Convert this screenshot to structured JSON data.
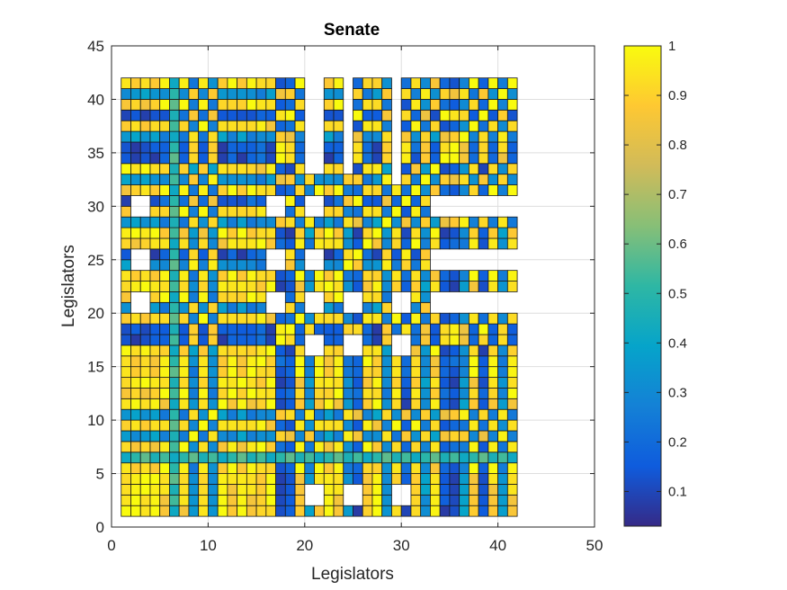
{
  "chart_data": {
    "type": "heatmap",
    "title": "Senate",
    "xlabel": "Legislators",
    "ylabel": "Legislators",
    "xlim": [
      0,
      50
    ],
    "ylim": [
      0,
      45
    ],
    "xticks": [
      "0",
      "10",
      "20",
      "30",
      "40",
      "50"
    ],
    "yticks": [
      "0",
      "5",
      "10",
      "15",
      "20",
      "25",
      "30",
      "35",
      "40",
      "45"
    ],
    "grid": true,
    "n_legislators": 41,
    "colorbar": {
      "min": 0.03,
      "max": 1,
      "ticks": [
        "0.1",
        "0.2",
        "0.3",
        "0.4",
        "0.5",
        "0.6",
        "0.7",
        "0.8",
        "0.9",
        "1"
      ],
      "colormap": "parula",
      "colors": [
        "#352a87",
        "#0f5cdd",
        "#1481d6",
        "#06a4ca",
        "#2eb7a4",
        "#87bf77",
        "#d1bb59",
        "#fec832",
        "#f9fb0e"
      ]
    },
    "legislator_groups": [
      0,
      0,
      0,
      0,
      1,
      2,
      1,
      3,
      1,
      3,
      0,
      1,
      0,
      1,
      1,
      0,
      2,
      2,
      1,
      3,
      1,
      0,
      1,
      3,
      2,
      1,
      0,
      3,
      1,
      2,
      1,
      3,
      0,
      2,
      2,
      3,
      1,
      2,
      1,
      3,
      1
    ],
    "group_agreement": [
      [
        0.97,
        0.9,
        0.12,
        0.35
      ],
      [
        0.9,
        0.96,
        0.18,
        0.28
      ],
      [
        0.12,
        0.18,
        0.96,
        0.88
      ],
      [
        0.35,
        0.28,
        0.88,
        0.93
      ]
    ],
    "special_rows": {
      "6": 0.5
    },
    "missing_columns": [
      {
        "col": 20,
        "rows": [
          33,
          42
        ]
      },
      {
        "col": 21,
        "rows": [
          33,
          41
        ]
      },
      {
        "col": 24,
        "rows": [
          33,
          42
        ]
      },
      {
        "col": 29,
        "rows": [
          32,
          42
        ]
      }
    ],
    "missing_rows": [
      {
        "row": 20,
        "cols": [
          33,
          42
        ]
      },
      {
        "row": 21,
        "cols": [
          33,
          42
        ]
      },
      {
        "row": 24,
        "cols": [
          33,
          42
        ]
      },
      {
        "row": 25,
        "cols": [
          33,
          42
        ]
      },
      {
        "row": 29,
        "cols": [
          33,
          42
        ]
      },
      {
        "row": 30,
        "cols": [
          33,
          42
        ]
      }
    ],
    "missing_blocks": [
      {
        "cols": [
          2,
          3
        ],
        "rows": [
          20,
          21
        ]
      },
      {
        "cols": [
          2,
          3
        ],
        "rows": [
          24,
          25
        ]
      },
      {
        "cols": [
          2,
          3
        ],
        "rows": [
          29,
          30
        ]
      },
      {
        "cols": [
          16,
          17
        ],
        "rows": [
          20,
          21
        ]
      },
      {
        "cols": [
          16,
          17
        ],
        "rows": [
          24,
          25
        ]
      },
      {
        "cols": [
          16,
          17
        ],
        "rows": [
          29,
          30
        ]
      },
      {
        "cols": [
          20,
          21
        ],
        "rows": [
          20,
          21
        ]
      },
      {
        "cols": [
          20,
          21
        ],
        "rows": [
          24,
          25
        ]
      },
      {
        "cols": [
          20,
          21
        ],
        "rows": [
          29,
          30
        ]
      },
      {
        "cols": [
          20,
          21
        ],
        "rows": [
          2,
          3
        ]
      },
      {
        "cols": [
          20,
          21
        ],
        "rows": [
          16,
          17
        ]
      },
      {
        "cols": [
          24,
          25
        ],
        "rows": [
          2,
          3
        ]
      },
      {
        "cols": [
          24,
          25
        ],
        "rows": [
          16,
          17
        ]
      },
      {
        "cols": [
          24,
          25
        ],
        "rows": [
          20,
          21
        ]
      },
      {
        "cols": [
          29,
          30
        ],
        "rows": [
          2,
          3
        ]
      },
      {
        "cols": [
          29,
          30
        ],
        "rows": [
          16,
          17
        ]
      },
      {
        "cols": [
          29,
          30
        ],
        "rows": [
          20,
          21
        ]
      }
    ]
  }
}
